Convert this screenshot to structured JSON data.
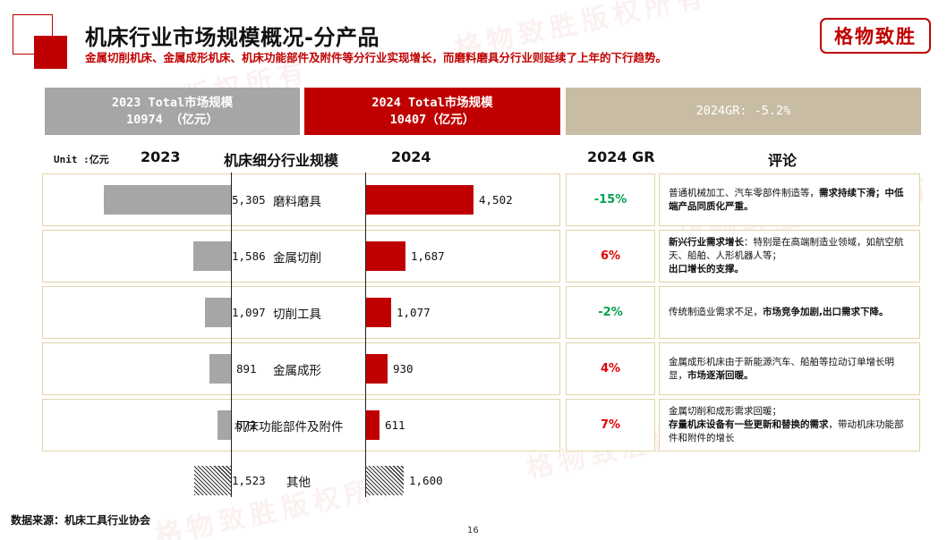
{
  "header": {
    "title": "机床行业市场规模概况-分产品",
    "subtitle": "金属切削机床、金属成形机床、机床功能部件及附件等分行业实现增长，而磨料磨具分行业则延续了上年的下行趋势。",
    "logo": "格物致胜",
    "watermark": "格物致胜版权所有"
  },
  "banners": {
    "total_2023_line1": "2023 Total市场规模",
    "total_2023_line2": "10974 （亿元）",
    "total_2024_line1": "2024 Total市场规模",
    "total_2024_line2": "10407（亿元）",
    "gr": "2024GR: -5.2%"
  },
  "column_headers": {
    "unit": "Unit :亿元",
    "y2023": "2023",
    "category": "机床细分行业规模",
    "y2024": "2024",
    "gr": "2024 GR",
    "comment": "评论"
  },
  "colors": {
    "brand_red": "#c00000",
    "bar_2023": "#a6a6a6",
    "banner_gr": "#c8bda4",
    "positive_gr": "#e00000",
    "negative_gr": "#00a050"
  },
  "chart_data": {
    "type": "bar",
    "title": "机床细分行业规模",
    "unit": "亿元",
    "categories": [
      "磨料磨具",
      "金属切削",
      "切削工具",
      "金属成形",
      "机床功能部件及附件",
      "其他"
    ],
    "series": [
      {
        "name": "2023",
        "values": [
          5305,
          1586,
          1097,
          891,
          572,
          1523
        ]
      },
      {
        "name": "2024",
        "values": [
          4502,
          1687,
          1077,
          930,
          611,
          1600
        ]
      }
    ],
    "labels_2023": [
      "5,305",
      "1,586",
      "1,097",
      "891",
      "572",
      "1,523"
    ],
    "labels_2024": [
      "4,502",
      "1,687",
      "1,077",
      "930",
      "611",
      "1,600"
    ],
    "growth": [
      "-15%",
      "6%",
      "-2%",
      "4%",
      "7%",
      ""
    ]
  },
  "comments": [
    {
      "text": "普通机械加工、汽车零部件制造等，",
      "bold": "需求持续下滑；中低端产品同质化严重。"
    },
    {
      "bold_lead": "新兴行业需求增长",
      "text": "：特别是在高端制造业领域，如航空航天、船舶、人形机器人等；",
      "bold": "出口增长的支撑。"
    },
    {
      "text": "传统制造业需求不足，",
      "bold": "市场竞争加剧,出口需求下降。"
    },
    {
      "text": "金属成形机床由于新能源汽车、船舶等拉动订单增长明显，",
      "bold": "市场逐渐回暖。"
    },
    {
      "text": "金属切削和成形需求回暖；",
      "bold": "存量机床设备有一些更新和替换的需求",
      "tail": "，带动机床功能部件和附件的增长"
    }
  ],
  "footer": {
    "source": "数据来源：机床工具行业协会",
    "page": "16"
  }
}
